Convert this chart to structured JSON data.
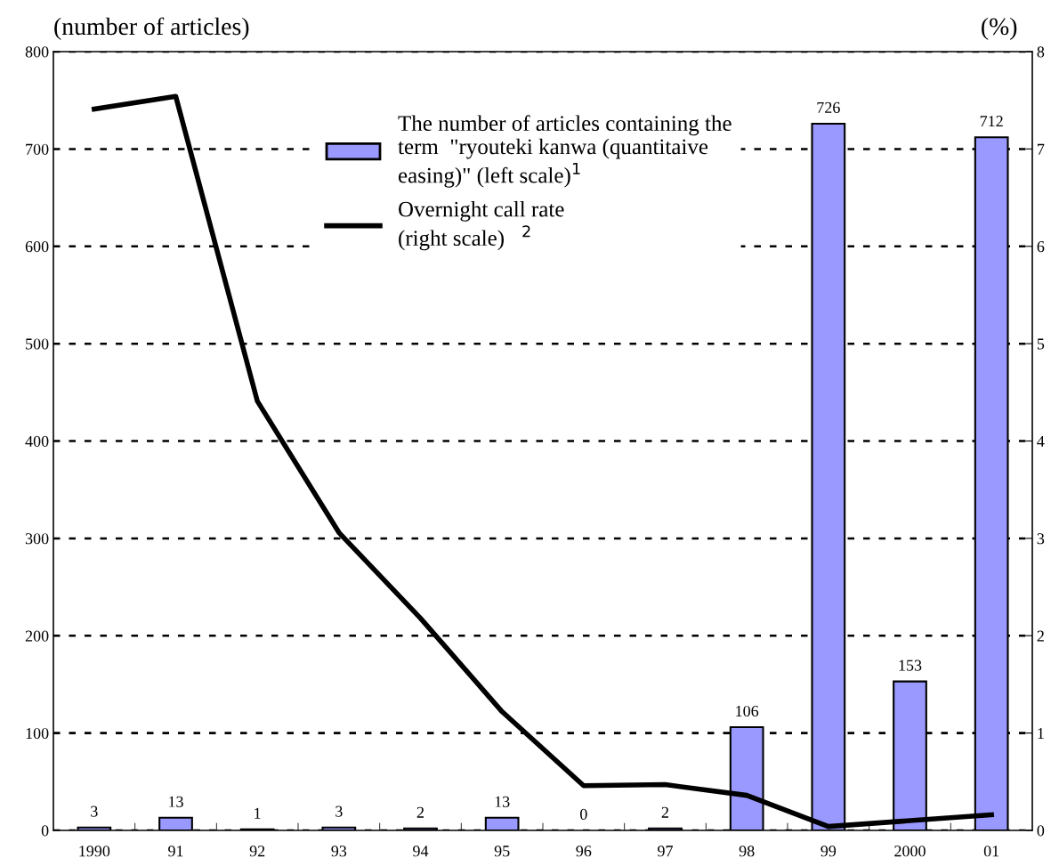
{
  "chart_data": {
    "type": "bar",
    "ylabel": "(number of articles)",
    "y2label": "(%)",
    "categories": [
      "1990",
      "91",
      "92",
      "93",
      "94",
      "95",
      "96",
      "97",
      "98",
      "99",
      "2000",
      "01"
    ],
    "series": [
      {
        "name": "The number of articles containing the\nterm  \"ryouteki kanwa (quantitaive\neasing)\" (left scale)$^{1}$",
        "color": "#9999ff",
        "values": [
          3,
          13,
          1,
          3,
          2,
          13,
          0,
          2,
          106,
          726,
          153,
          712
        ],
        "value_labels": [
          "3",
          "13",
          "1",
          "3",
          "2",
          "13",
          "0",
          "2",
          "106",
          "726",
          "153",
          "712"
        ]
      },
      {
        "name": "Overnight call rate\n(right scale)   $^{2}$",
        "type": "line",
        "axis": "y2",
        "color": "#000000",
        "values": [
          7.41,
          7.54,
          4.41,
          3.06,
          2.18,
          1.22,
          0.46,
          0.47,
          0.36,
          0.04,
          0.1,
          0.16
        ]
      }
    ],
    "ylim": [
      0,
      800
    ],
    "yticks": [
      0,
      100,
      200,
      300,
      400,
      500,
      600,
      700,
      800
    ],
    "y2lim": [
      0,
      8
    ],
    "y2ticks": [
      0,
      1,
      2,
      3,
      4,
      5,
      6,
      7,
      8
    ],
    "grid": "y",
    "legend": "top",
    "marker": "none",
    "line_style": "solid"
  }
}
